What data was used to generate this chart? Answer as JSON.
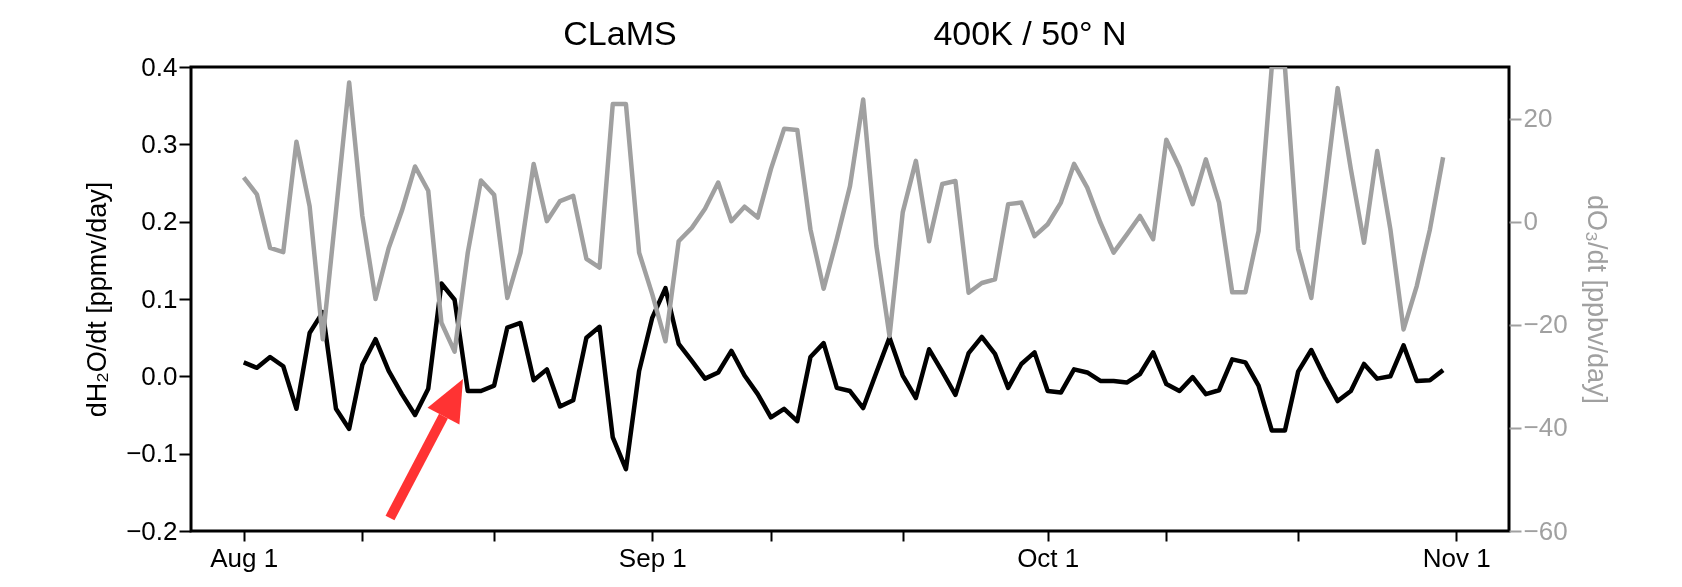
{
  "chart_data": {
    "type": "line",
    "title": "CLaMS",
    "subtitle": "400K / 50° N",
    "ylabel": "dH₂O/dt [ppmv/day]",
    "y2label": "dO₃/dt [ppbv/day]",
    "x": [
      "--08-01",
      "--08-02",
      "--08-03",
      "--08-04",
      "--08-05",
      "--08-06",
      "--08-07",
      "--08-08",
      "--08-09",
      "--08-10",
      "--08-11",
      "--08-12",
      "--08-13",
      "--08-14",
      "--08-15",
      "--08-16",
      "--08-17",
      "--08-18",
      "--08-19",
      "--08-20",
      "--08-21",
      "--08-22",
      "--08-23",
      "--08-24",
      "--08-25",
      "--08-26",
      "--08-27",
      "--08-28",
      "--08-29",
      "--08-30",
      "--08-31",
      "--09-01",
      "--09-02",
      "--09-03",
      "--09-04",
      "--09-05",
      "--09-06",
      "--09-07",
      "--09-08",
      "--09-09",
      "--09-10",
      "--09-11",
      "--09-12",
      "--09-13",
      "--09-14",
      "--09-15",
      "--09-16",
      "--09-17",
      "--09-18",
      "--09-19",
      "--09-20",
      "--09-21",
      "--09-22",
      "--09-23",
      "--09-24",
      "--09-25",
      "--09-26",
      "--09-27",
      "--09-28",
      "--09-29",
      "--09-30",
      "--10-01",
      "--10-02",
      "--10-03",
      "--10-04",
      "--10-05",
      "--10-06",
      "--10-07",
      "--10-08",
      "--10-09",
      "--10-10",
      "--10-11",
      "--10-12",
      "--10-13",
      "--10-14",
      "--10-15",
      "--10-16",
      "--10-17",
      "--10-18",
      "--10-19",
      "--10-20",
      "--10-21",
      "--10-22",
      "--10-23",
      "--10-24",
      "--10-25",
      "--10-26",
      "--10-27",
      "--10-28",
      "--10-29",
      "--10-30",
      "--10-31"
    ],
    "series": [
      {
        "color": "#000000",
        "values": [
          0.018,
          0.011,
          0.025,
          0.013,
          -0.042,
          0.056,
          0.083,
          -0.042,
          -0.068,
          0.015,
          0.048,
          0.007,
          -0.023,
          -0.05,
          -0.016,
          0.12,
          0.099,
          -0.019,
          -0.019,
          -0.012,
          0.063,
          0.069,
          -0.005,
          0.009,
          -0.039,
          -0.031,
          0.05,
          0.064,
          -0.079,
          -0.12,
          0.007,
          0.076,
          0.114,
          0.042,
          0.02,
          -0.003,
          0.005,
          0.033,
          0.001,
          -0.023,
          -0.053,
          -0.042,
          -0.058,
          0.025,
          0.043,
          -0.015,
          -0.019,
          -0.041,
          0.005,
          0.05,
          0.001,
          -0.028,
          0.035,
          0.006,
          -0.024,
          0.03,
          0.051,
          0.029,
          -0.015,
          0.016,
          0.031,
          -0.019,
          -0.021,
          0.009,
          0.005,
          -0.006,
          -0.006,
          -0.008,
          0.003,
          0.031,
          -0.01,
          -0.019,
          -0.001,
          -0.023,
          -0.018,
          0.022,
          0.018,
          -0.012,
          -0.07,
          -0.07,
          0.006,
          0.034,
          -0.001,
          -0.032,
          -0.019,
          0.016,
          -0.003,
          0,
          0.04,
          -0.006,
          -0.005,
          0.008
        ]
      },
      {
        "color": "#a0a0a0",
        "axis": "y2",
        "values": [
          8.6,
          5.3,
          -5.1,
          -5.9,
          15.5,
          3,
          -22.8,
          2,
          27,
          1.1,
          -15,
          -5.1,
          2.1,
          10.7,
          6,
          -19.6,
          -25.2,
          -6,
          8,
          5.2,
          -14.8,
          -6,
          11.2,
          0.1,
          4,
          5,
          -7.2,
          -8.9,
          22.8,
          22.8,
          -6,
          -14.1,
          -23.2,
          -3.8,
          -1.2,
          2.5,
          7.6,
          0.1,
          2.9,
          0.8,
          10.2,
          18,
          17.8,
          -1.5,
          -13,
          -3.4,
          6.9,
          23.7,
          -4.7,
          -22.2,
          1.8,
          11.8,
          -3.8,
          7.3,
          7.9,
          -13.8,
          -11.9,
          -11.2,
          3.4,
          3.7,
          -2.8,
          -0.5,
          3.7,
          11.2,
          6.6,
          -0.2,
          -6,
          -2.5,
          1.1,
          -3.4,
          15.9,
          10.5,
          3.4,
          12.1,
          3.7,
          -13.7,
          -13.7,
          -1.8,
          30,
          30,
          -5.3,
          -14.8,
          5,
          25.9,
          10.2,
          -4.1,
          13.7,
          -1.5,
          -20.9,
          -12.5,
          -1.5,
          12.5
        ]
      }
    ],
    "xlim": [
      "--07-28",
      "--11-05"
    ],
    "xticks": [
      {
        "value": "--08-01",
        "label": "Aug 1"
      },
      {
        "value": "--08-10",
        "label": null
      },
      {
        "value": "--08-20",
        "label": null
      },
      {
        "value": "--09-01",
        "label": "Sep 1"
      },
      {
        "value": "--09-10",
        "label": null
      },
      {
        "value": "--09-20",
        "label": null
      },
      {
        "value": "--10-01",
        "label": "Oct 1"
      },
      {
        "value": "--10-10",
        "label": null
      },
      {
        "value": "--10-20",
        "label": null
      },
      {
        "value": "--11-01",
        "label": "Nov 1"
      }
    ],
    "ylim": [
      -0.2,
      0.4
    ],
    "yticks": [
      {
        "value": -0.2,
        "label": "−0.2"
      },
      {
        "value": -0.1,
        "label": "−0.1"
      },
      {
        "value": 0,
        "label": "0.0"
      },
      {
        "value": 0.1,
        "label": "0.1"
      },
      {
        "value": 0.2,
        "label": "0.2"
      },
      {
        "value": 0.3,
        "label": "0.3"
      },
      {
        "value": 0.4,
        "label": "0.4"
      }
    ],
    "y2lim": [
      -60,
      30
    ],
    "y2ticks": [
      {
        "value": -60,
        "label": "−60"
      },
      {
        "value": -40,
        "label": "−40"
      },
      {
        "value": -20,
        "label": "−20"
      },
      0,
      20
    ]
  }
}
